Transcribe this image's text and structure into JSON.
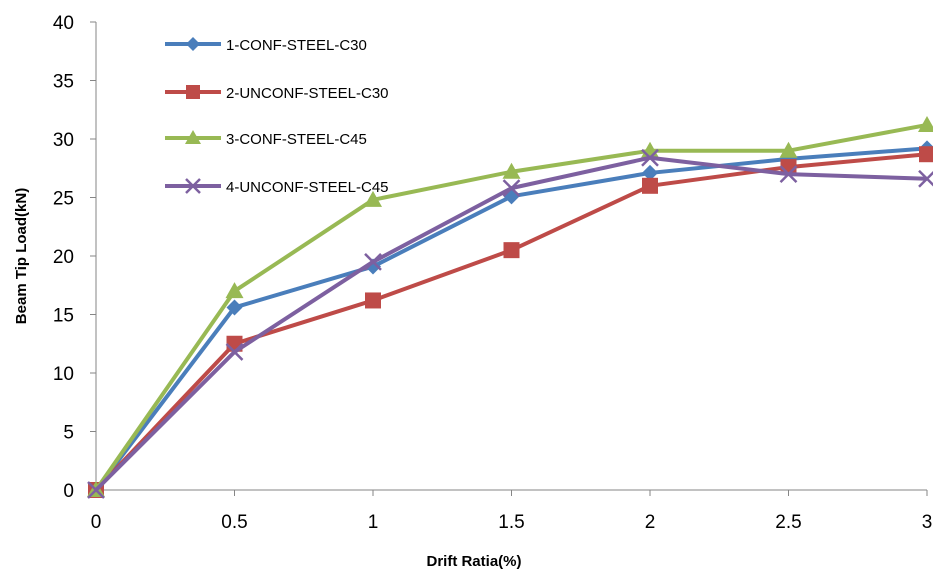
{
  "chart_data": {
    "type": "line",
    "title": "",
    "xlabel": "Drift Ratia(%)",
    "ylabel": "Beam Tip Load(kN)",
    "x": [
      0,
      0.5,
      1,
      1.5,
      2,
      2.5,
      3
    ],
    "x_tick_labels": [
      "0",
      "0.5",
      "1",
      "1.5",
      "2",
      "2.5",
      "3"
    ],
    "y_tick_labels": [
      "0",
      "5",
      "10",
      "15",
      "20",
      "25",
      "30",
      "35",
      "40"
    ],
    "xlim": [
      0,
      3
    ],
    "ylim": [
      0,
      40
    ],
    "grid": false,
    "legend_position": "top-left",
    "series": [
      {
        "name": "1-CONF-STEEL-C30",
        "color": "#4A7EBB",
        "marker": "diamond",
        "values": [
          0,
          15.6,
          19.1,
          25.1,
          27.1,
          28.3,
          29.2
        ]
      },
      {
        "name": "2-UNCONF-STEEL-C30",
        "color": "#BE4B48",
        "marker": "square",
        "values": [
          0,
          12.5,
          16.2,
          20.5,
          26.0,
          27.6,
          28.7
        ]
      },
      {
        "name": "3-CONF-STEEL-C45",
        "color": "#98B954",
        "marker": "triangle",
        "values": [
          0,
          17.0,
          24.8,
          27.2,
          29.0,
          29.0,
          31.2
        ]
      },
      {
        "name": "4-UNCONF-STEEL-C45",
        "color": "#7D60A0",
        "marker": "x",
        "values": [
          0,
          11.8,
          19.5,
          25.8,
          28.4,
          27.0,
          26.6
        ]
      }
    ]
  }
}
